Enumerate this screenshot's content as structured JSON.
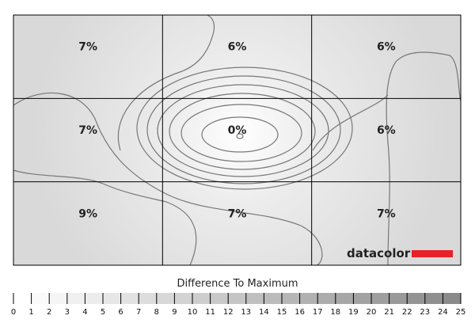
{
  "chart_data": {
    "type": "heatmap",
    "title": "",
    "rows": 3,
    "cols": 3,
    "values": [
      [
        7,
        6,
        6
      ],
      [
        7,
        0,
        6
      ],
      [
        9,
        7,
        7
      ]
    ],
    "labels": [
      [
        "7%",
        "6%",
        "6%"
      ],
      [
        "7%",
        "0%",
        "6%"
      ],
      [
        "9%",
        "7%",
        "7%"
      ]
    ],
    "unit": "%",
    "contour_lines": true,
    "legend": {
      "title": "Difference To Maximum",
      "ticks": [
        "0",
        "1",
        "2",
        "3",
        "4",
        "5",
        "6",
        "7",
        "8",
        "9",
        "10",
        "11",
        "12",
        "13",
        "14",
        "15",
        "16",
        "17",
        "18",
        "19",
        "20",
        "21",
        "22",
        "23",
        "24",
        "25"
      ],
      "range": [
        0,
        25
      ],
      "colors": {
        "low": "#ffffff",
        "high": "#8a8a8a"
      }
    },
    "logo": "datacolor",
    "logo_bar_color": "#e8202a"
  }
}
